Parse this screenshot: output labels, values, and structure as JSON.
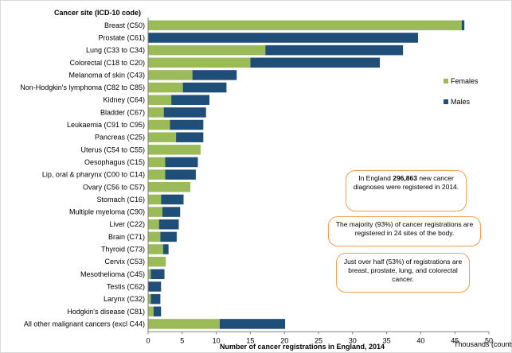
{
  "chart_data": {
    "type": "bar",
    "stacked": true,
    "orientation": "horizontal",
    "categories_title": "Cancer site (ICD-10 code)",
    "categories": [
      "Breast (C50)",
      "Prostate (C61)",
      "Lung (C33 to C34)",
      "Colorectal (C18 to C20)",
      "Melanoma of skin (C43)",
      "Non-Hodgkin's lymphoma (C82 to C85)",
      "Kidney (C64)",
      "Bladder (C67)",
      "Leukaemia (C91 to C95)",
      "Pancreas (C25)",
      "Uterus (C54 to C55)",
      "Oesophagus (C15)",
      "Lip, oral & pharynx  (C00 to C14)",
      "Ovary (C56 to C57)",
      "Stomach (C16)",
      "Multiple myeloma (C90)",
      "Liver (C22)",
      "Brain (C71)",
      "Thyroid (C73)",
      "Cervix (C53)",
      "Mesothelioma (C45)",
      "Testis (C62)",
      "Larynx (C32)",
      "Hodgkin's disease (C81)",
      "All other malignant cancers (excl C44)"
    ],
    "series": [
      {
        "name": "Females",
        "color": "#9bbb59",
        "values": [
          46.0,
          0,
          17.2,
          15.0,
          6.5,
          5.1,
          3.4,
          2.3,
          3.2,
          4.1,
          7.7,
          2.5,
          2.5,
          6.2,
          1.9,
          2.1,
          1.6,
          1.8,
          2.2,
          2.6,
          0.4,
          0,
          0.4,
          0.8,
          10.5
        ]
      },
      {
        "name": "Males",
        "color": "#1f4e79",
        "values": [
          0.4,
          39.6,
          20.2,
          19.0,
          6.5,
          6.4,
          5.6,
          6.2,
          4.9,
          4.0,
          0,
          4.8,
          4.5,
          0,
          3.3,
          2.6,
          2.9,
          2.4,
          0.8,
          0,
          2.0,
          1.9,
          1.4,
          1.1,
          9.6
        ]
      }
    ],
    "xlabel": "Number of cancer registrations in England, 2014",
    "xunit": "Thousands (counts)",
    "xlim": [
      0,
      50
    ],
    "xticks": [
      0,
      5,
      10,
      15,
      20,
      25,
      30,
      35,
      40,
      45,
      50
    ],
    "grid": false,
    "legend_position": "right"
  },
  "callouts": {
    "first_prefix": "In England ",
    "first_bold": "296,863",
    "first_suffix": " new cancer diagnoses were registered in 2014.",
    "second": "The majority (93%) of cancer registrations are registered in 24 sites of the body.",
    "third": "Just over half (53%) of registrations are breast, prostate, lung, and colorectal cancer."
  }
}
